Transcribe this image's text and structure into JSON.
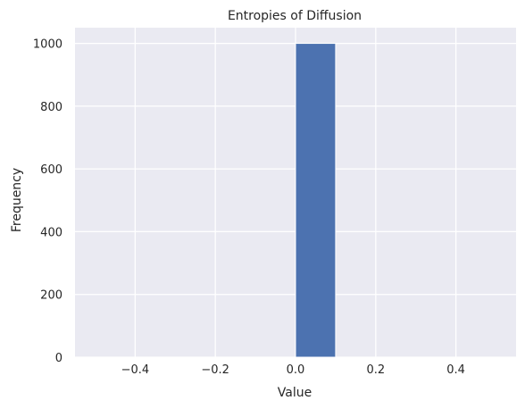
{
  "chart_data": {
    "type": "bar",
    "title": "Entropies of Diffusion",
    "xlabel": "Value",
    "ylabel": "Frequency",
    "xlim": [
      -0.55,
      0.55
    ],
    "ylim": [
      0,
      1050
    ],
    "x_ticks": [
      -0.4,
      -0.2,
      0.0,
      0.2,
      0.4
    ],
    "x_tick_labels": [
      "−0.4",
      "−0.2",
      "0.0",
      "0.2",
      "0.4"
    ],
    "y_ticks": [
      0,
      200,
      400,
      600,
      800,
      1000
    ],
    "y_tick_labels": [
      "0",
      "200",
      "400",
      "600",
      "800",
      "1000"
    ],
    "bins": [
      {
        "start": 0.0,
        "end": 0.1,
        "count": 1000
      }
    ],
    "grid": true,
    "colors": {
      "background": "#eaeaf2",
      "grid": "#ffffff",
      "bar": "#4c72b0",
      "text": "#262626"
    }
  }
}
